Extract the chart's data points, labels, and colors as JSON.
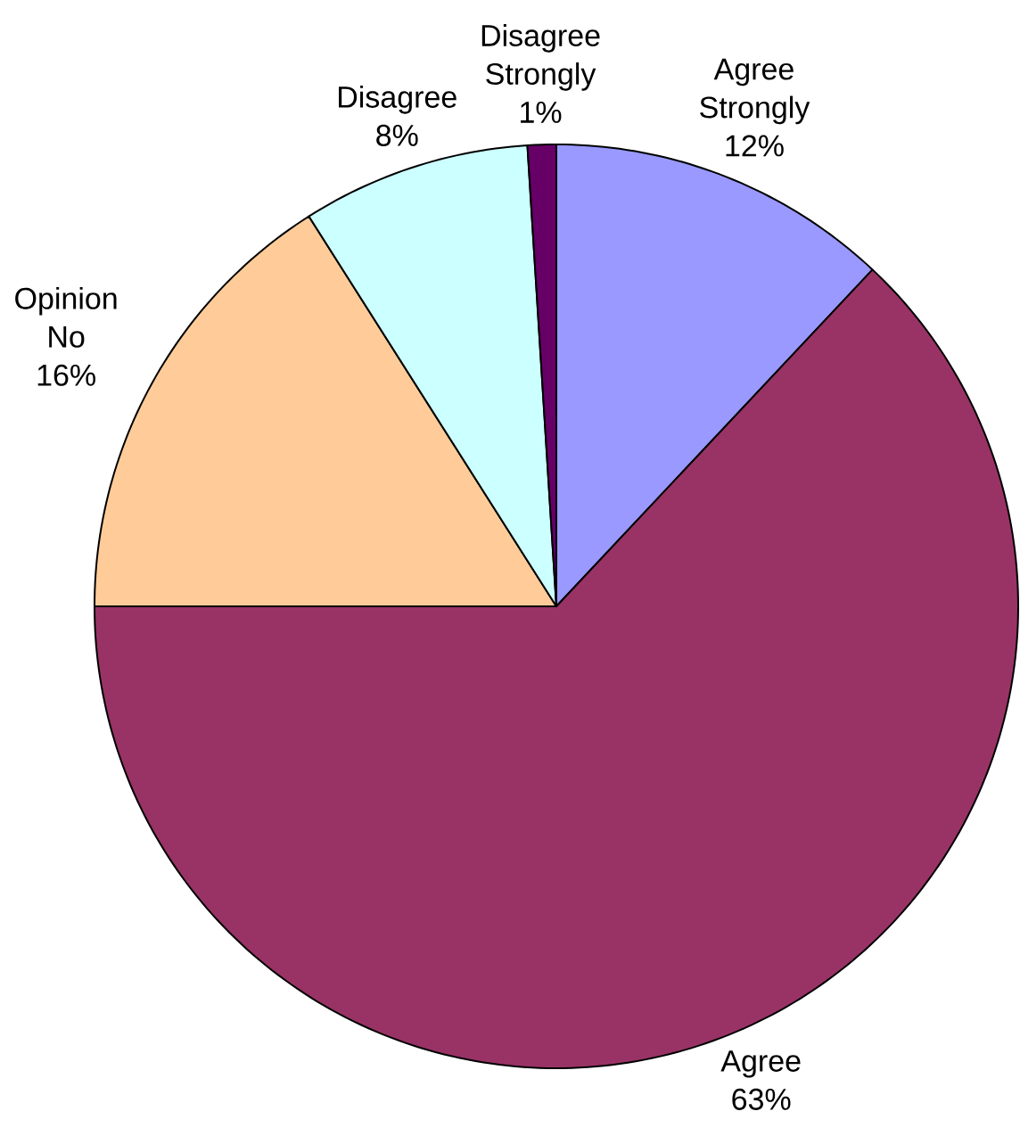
{
  "chart_data": {
    "type": "pie",
    "categories": [
      "Agree Strongly",
      "Agree",
      "Opinion No",
      "Disagree",
      "Disagree Strongly"
    ],
    "values": [
      12,
      63,
      16,
      8,
      1
    ],
    "colors": [
      "#9999ff",
      "#993366",
      "#ffcc99",
      "#ccffff",
      "#660066"
    ],
    "value_labels": [
      "12%",
      "63%",
      "16%",
      "8%",
      "1%"
    ]
  }
}
